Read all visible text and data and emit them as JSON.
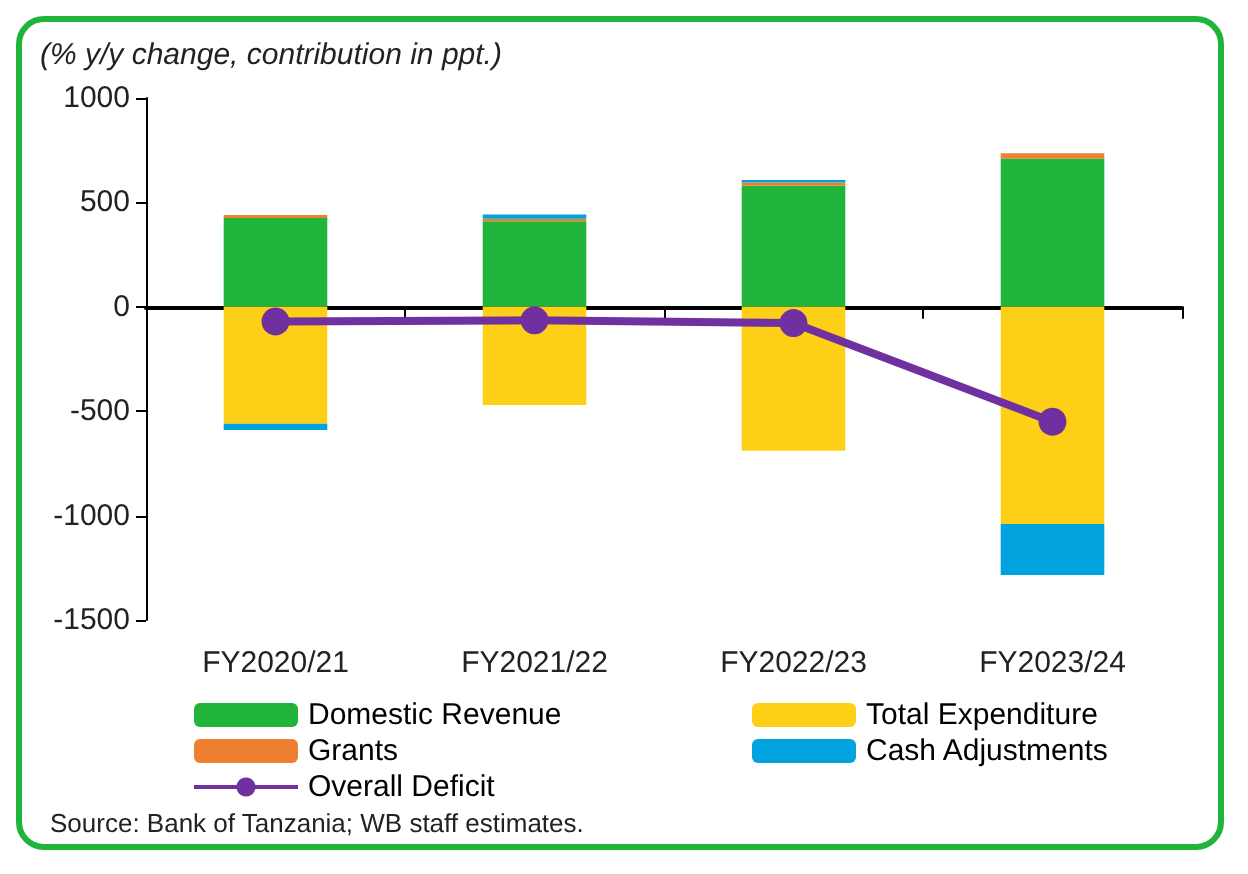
{
  "chart_data": {
    "type": "bar",
    "title": "(% y/y change, contribution in ppt.)",
    "categories": [
      "FY2020/21",
      "FY2021/22",
      "FY2022/23",
      "FY2023/24"
    ],
    "stacked": true,
    "series": [
      {
        "name": "Domestic Revenue",
        "color": "#21b43b",
        "values": [
          425,
          410,
          580,
          710
        ]
      },
      {
        "name": "Total Expenditure",
        "color": "#fdd017",
        "values": [
          -560,
          -470,
          -690,
          -1040
        ]
      },
      {
        "name": "Grants",
        "color": "#ef7f31",
        "values": [
          15,
          12,
          15,
          25
        ]
      },
      {
        "name": "Cash Adjustments",
        "color": "#00a3dd",
        "values": [
          -30,
          20,
          12,
          -245
        ]
      },
      {
        "name": "Overall Deficit",
        "type": "line",
        "color": "#7030a0",
        "marker": "circle",
        "values": [
          -70,
          -65,
          -78,
          -550
        ]
      }
    ],
    "ylim": [
      -1500,
      1000
    ],
    "yticks": [
      -1500,
      -1000,
      -500,
      0,
      500,
      1000
    ],
    "legend": "bottom",
    "annotations": [
      "Source: Bank of Tanzania; WB staff estimates."
    ]
  }
}
